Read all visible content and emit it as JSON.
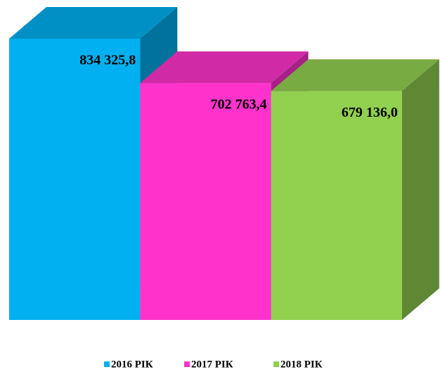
{
  "chart_data": {
    "type": "bar3d",
    "series": [
      {
        "name": "2016 РІК",
        "color": "#00b0f0",
        "values": [
          834325.8
        ],
        "value_labels": [
          "834 325,8"
        ]
      },
      {
        "name": "2017 РІК",
        "color": "#ff33cc",
        "values": [
          702763.4
        ],
        "value_labels": [
          "702 763,4"
        ]
      },
      {
        "name": "2018 РІК",
        "color": "#92d050",
        "values": [
          679136.0
        ],
        "value_labels": [
          "679 136,0"
        ]
      }
    ],
    "legend": "bottom"
  }
}
